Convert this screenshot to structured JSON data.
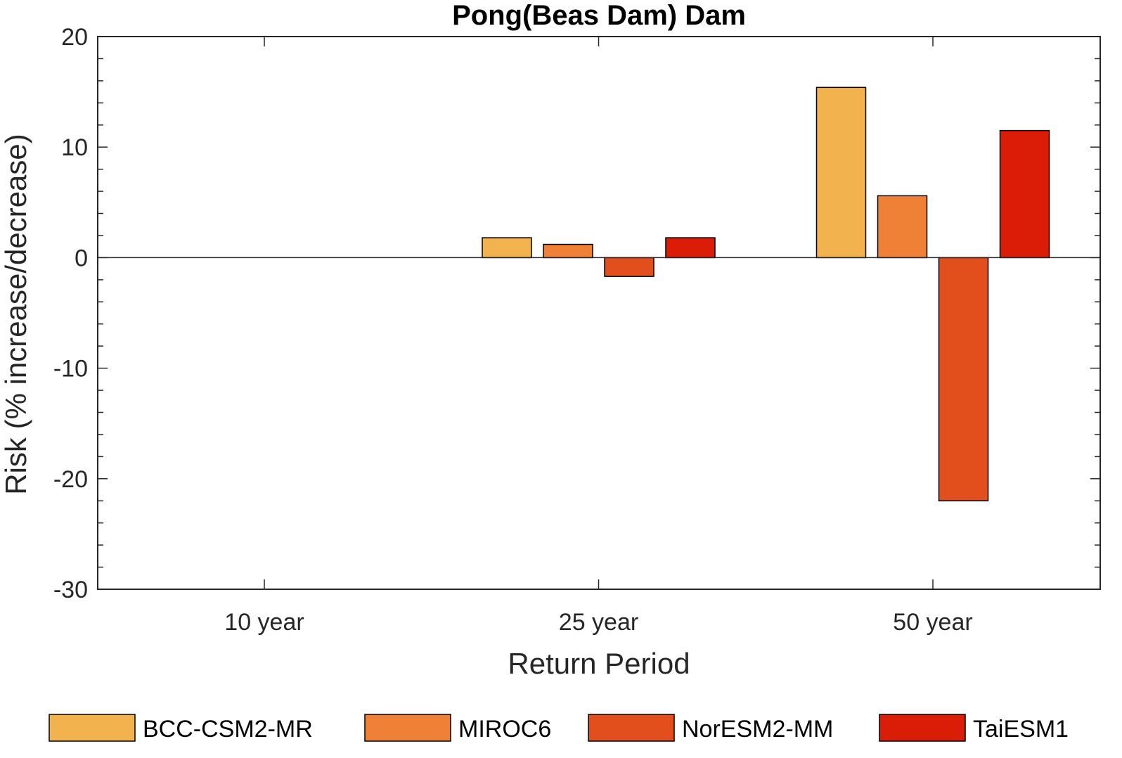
{
  "chart_data": {
    "type": "bar",
    "title": "Pong(Beas Dam) Dam",
    "xlabel": "Return Period",
    "ylabel": "Risk (% increase/decrease)",
    "categories": [
      "10 year",
      "25 year",
      "50 year"
    ],
    "ylim": [
      -30,
      20
    ],
    "yticks": [
      20,
      10,
      0,
      -10,
      -20,
      -30
    ],
    "ytick_labels": [
      "20",
      "10",
      "0",
      "-10",
      "-20",
      "-30"
    ],
    "grid": false,
    "legend_position": "bottom",
    "series": [
      {
        "name": "BCC-CSM2-MR",
        "color": "#F2B24E",
        "values": [
          0,
          1.8,
          15.4
        ]
      },
      {
        "name": "MIROC6",
        "color": "#EE8135",
        "values": [
          0,
          1.2,
          5.6
        ]
      },
      {
        "name": "NorESM2-MM",
        "color": "#E34E1D",
        "values": [
          0,
          -1.7,
          -22.0
        ]
      },
      {
        "name": "TaiESM1",
        "color": "#DB1C06",
        "values": [
          0,
          1.8,
          11.5
        ]
      }
    ]
  }
}
